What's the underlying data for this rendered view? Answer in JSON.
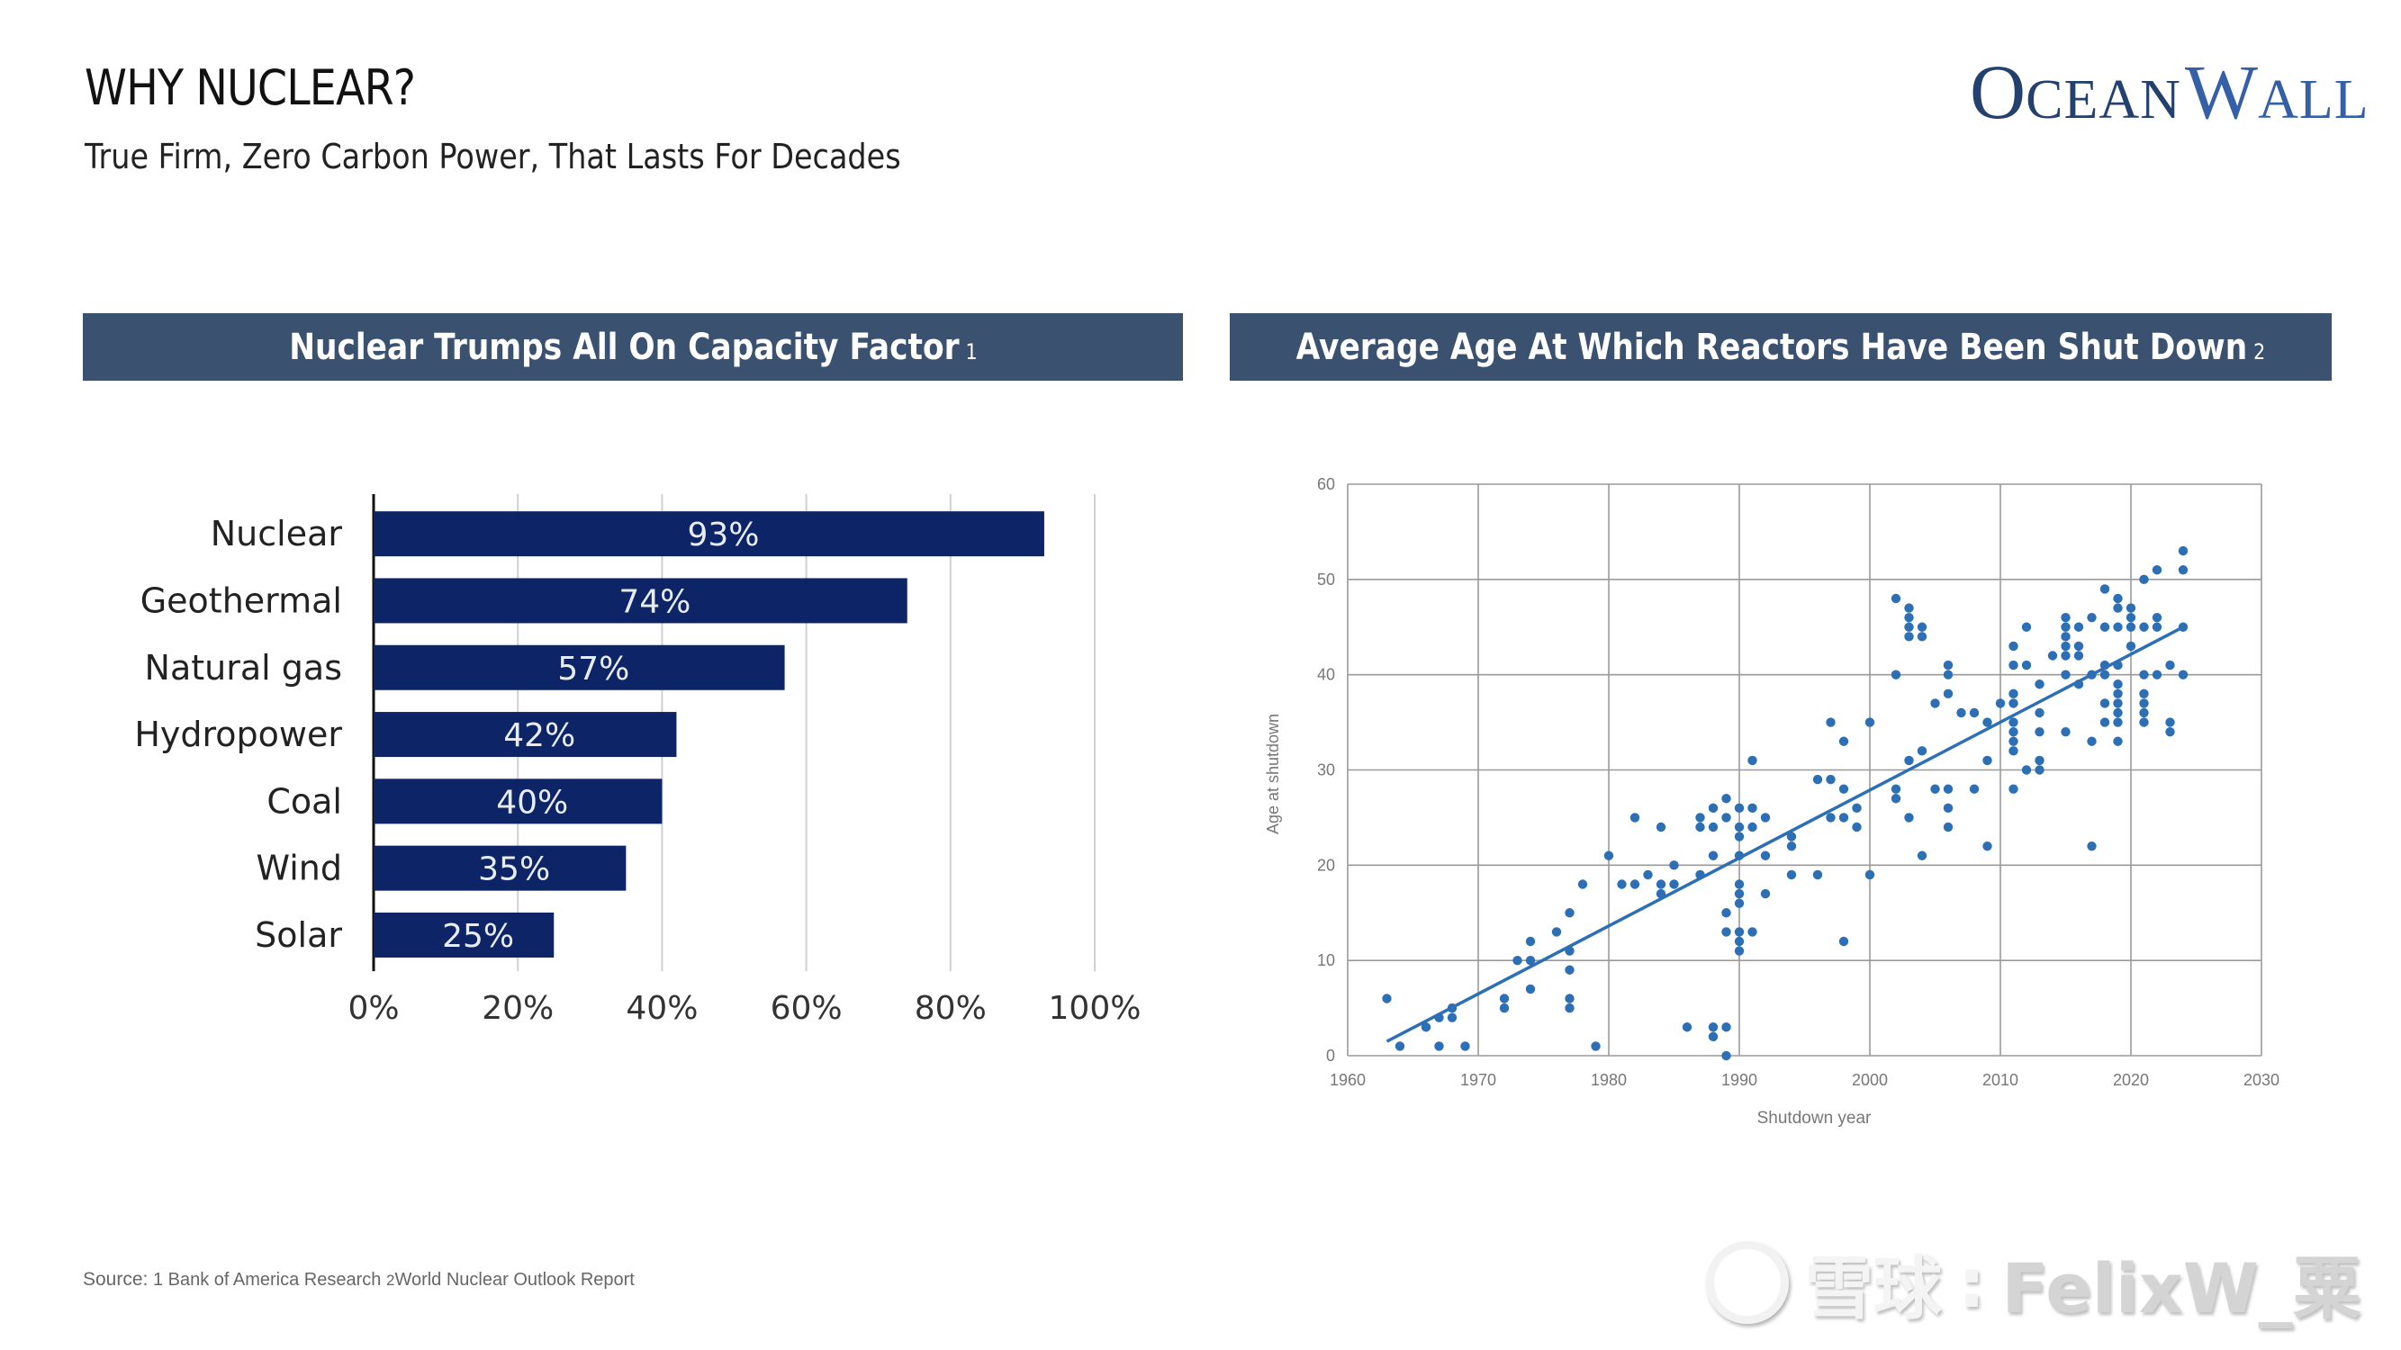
{
  "header": {
    "title": "WHY NUCLEAR?",
    "subtitle": "True Firm, Zero Carbon Power, That Lasts For Decades",
    "logo": {
      "first_initial": "O",
      "first_rest": "CEAN",
      "second_initial": "W",
      "second_rest": "ALL"
    }
  },
  "colors": {
    "banner": "#3a5170",
    "bar": "#0d2466",
    "scatter": "#2c6fb4",
    "logo_dark": "#24406e",
    "logo_light": "#3560a8"
  },
  "panels": {
    "left": {
      "title": "Nuclear Trumps All On Capacity Factor",
      "footnote": "1"
    },
    "right": {
      "title": "Average Age At Which Reactors Have Been Shut Down",
      "footnote": "2"
    }
  },
  "footer": {
    "label": "Source:",
    "n1": "1",
    "s1": "Bank of America Research",
    "n2": "2",
    "s2": "World Nuclear Outlook Report"
  },
  "watermark": {
    "cn": "雪球",
    "sep": ":",
    "user": "FelixW_粟"
  },
  "chart_data": [
    {
      "type": "bar",
      "orientation": "horizontal",
      "title": "Nuclear Trumps All On Capacity Factor",
      "categories": [
        "Nuclear",
        "Geothermal",
        "Natural gas",
        "Hydropower",
        "Coal",
        "Wind",
        "Solar"
      ],
      "values": [
        93,
        74,
        57,
        42,
        40,
        35,
        25
      ],
      "value_labels": [
        "93%",
        "74%",
        "57%",
        "42%",
        "40%",
        "35%",
        "25%"
      ],
      "xlim": [
        0,
        100
      ],
      "xticks": [
        "0%",
        "20%",
        "40%",
        "60%",
        "80%",
        "100%"
      ],
      "xtick_values": [
        0,
        20,
        40,
        60,
        80,
        100
      ],
      "grid": true,
      "xlabel": "",
      "ylabel": ""
    },
    {
      "type": "scatter",
      "title": "Average Age At Which Reactors Have Been Shut Down",
      "xlabel": "Shutdown year",
      "ylabel": "Age at shutdown",
      "xlim": [
        1960,
        2030
      ],
      "ylim": [
        0,
        60
      ],
      "xticks": [
        "1960",
        "1970",
        "1980",
        "1990",
        "2000",
        "2010",
        "2020",
        "2030"
      ],
      "xtick_values": [
        1960,
        1970,
        1980,
        1990,
        2000,
        2010,
        2020,
        2030
      ],
      "yticks": [
        "0",
        "10",
        "20",
        "30",
        "40",
        "50",
        "60"
      ],
      "ytick_values": [
        0,
        10,
        20,
        30,
        40,
        50,
        60
      ],
      "grid": true,
      "trendline": {
        "x": [
          1963,
          2024
        ],
        "y": [
          1.5,
          45
        ]
      },
      "points": [
        [
          1963,
          6
        ],
        [
          1964,
          1
        ],
        [
          1966,
          3
        ],
        [
          1967,
          4
        ],
        [
          1967,
          1
        ],
        [
          1968,
          5
        ],
        [
          1968,
          4
        ],
        [
          1969,
          1
        ],
        [
          1972,
          6
        ],
        [
          1972,
          5
        ],
        [
          1973,
          10
        ],
        [
          1974,
          12
        ],
        [
          1974,
          10
        ],
        [
          1974,
          7
        ],
        [
          1976,
          13
        ],
        [
          1977,
          15
        ],
        [
          1977,
          11
        ],
        [
          1977,
          9
        ],
        [
          1977,
          6
        ],
        [
          1977,
          5
        ],
        [
          1978,
          18
        ],
        [
          1979,
          1
        ],
        [
          1980,
          21
        ],
        [
          1981,
          18
        ],
        [
          1982,
          18
        ],
        [
          1982,
          25
        ],
        [
          1983,
          19
        ],
        [
          1984,
          18
        ],
        [
          1984,
          17
        ],
        [
          1984,
          24
        ],
        [
          1985,
          20
        ],
        [
          1985,
          18
        ],
        [
          1986,
          3
        ],
        [
          1987,
          19
        ],
        [
          1987,
          25
        ],
        [
          1987,
          24
        ],
        [
          1988,
          26
        ],
        [
          1988,
          24
        ],
        [
          1988,
          21
        ],
        [
          1988,
          2
        ],
        [
          1988,
          3
        ],
        [
          1989,
          27
        ],
        [
          1989,
          25
        ],
        [
          1989,
          15
        ],
        [
          1989,
          13
        ],
        [
          1989,
          3
        ],
        [
          1989,
          0
        ],
        [
          1990,
          26
        ],
        [
          1990,
          24
        ],
        [
          1990,
          23
        ],
        [
          1990,
          21
        ],
        [
          1990,
          18
        ],
        [
          1990,
          17
        ],
        [
          1990,
          16
        ],
        [
          1990,
          13
        ],
        [
          1990,
          12
        ],
        [
          1990,
          11
        ],
        [
          1991,
          31
        ],
        [
          1991,
          26
        ],
        [
          1991,
          24
        ],
        [
          1991,
          13
        ],
        [
          1992,
          25
        ],
        [
          1992,
          21
        ],
        [
          1992,
          17
        ],
        [
          1994,
          23
        ],
        [
          1994,
          22
        ],
        [
          1994,
          19
        ],
        [
          1996,
          29
        ],
        [
          1996,
          19
        ],
        [
          1997,
          35
        ],
        [
          1997,
          29
        ],
        [
          1997,
          25
        ],
        [
          1998,
          33
        ],
        [
          1998,
          28
        ],
        [
          1998,
          25
        ],
        [
          1998,
          12
        ],
        [
          1999,
          26
        ],
        [
          1999,
          24
        ],
        [
          2000,
          35
        ],
        [
          2000,
          19
        ],
        [
          2002,
          48
        ],
        [
          2002,
          40
        ],
        [
          2002,
          28
        ],
        [
          2002,
          27
        ],
        [
          2003,
          47
        ],
        [
          2003,
          46
        ],
        [
          2003,
          45
        ],
        [
          2003,
          44
        ],
        [
          2003,
          31
        ],
        [
          2003,
          25
        ],
        [
          2004,
          45
        ],
        [
          2004,
          44
        ],
        [
          2004,
          32
        ],
        [
          2004,
          21
        ],
        [
          2005,
          37
        ],
        [
          2005,
          28
        ],
        [
          2006,
          41
        ],
        [
          2006,
          40
        ],
        [
          2006,
          38
        ],
        [
          2006,
          28
        ],
        [
          2006,
          26
        ],
        [
          2006,
          24
        ],
        [
          2007,
          36
        ],
        [
          2008,
          36
        ],
        [
          2008,
          28
        ],
        [
          2009,
          35
        ],
        [
          2009,
          31
        ],
        [
          2009,
          22
        ],
        [
          2010,
          37
        ],
        [
          2011,
          43
        ],
        [
          2011,
          41
        ],
        [
          2011,
          38
        ],
        [
          2011,
          37
        ],
        [
          2011,
          35
        ],
        [
          2011,
          34
        ],
        [
          2011,
          33
        ],
        [
          2011,
          32
        ],
        [
          2011,
          28
        ],
        [
          2012,
          45
        ],
        [
          2012,
          41
        ],
        [
          2012,
          30
        ],
        [
          2013,
          39
        ],
        [
          2013,
          36
        ],
        [
          2013,
          34
        ],
        [
          2013,
          31
        ],
        [
          2013,
          30
        ],
        [
          2014,
          42
        ],
        [
          2015,
          46
        ],
        [
          2015,
          45
        ],
        [
          2015,
          44
        ],
        [
          2015,
          43
        ],
        [
          2015,
          42
        ],
        [
          2015,
          40
        ],
        [
          2015,
          34
        ],
        [
          2016,
          45
        ],
        [
          2016,
          43
        ],
        [
          2016,
          42
        ],
        [
          2016,
          39
        ],
        [
          2017,
          46
        ],
        [
          2017,
          40
        ],
        [
          2017,
          33
        ],
        [
          2017,
          22
        ],
        [
          2018,
          49
        ],
        [
          2018,
          45
        ],
        [
          2018,
          41
        ],
        [
          2018,
          40
        ],
        [
          2018,
          37
        ],
        [
          2018,
          35
        ],
        [
          2019,
          48
        ],
        [
          2019,
          47
        ],
        [
          2019,
          45
        ],
        [
          2019,
          41
        ],
        [
          2019,
          39
        ],
        [
          2019,
          38
        ],
        [
          2019,
          37
        ],
        [
          2019,
          36
        ],
        [
          2019,
          35
        ],
        [
          2019,
          33
        ],
        [
          2020,
          47
        ],
        [
          2020,
          46
        ],
        [
          2020,
          45
        ],
        [
          2020,
          43
        ],
        [
          2021,
          50
        ],
        [
          2021,
          45
        ],
        [
          2021,
          40
        ],
        [
          2021,
          38
        ],
        [
          2021,
          37
        ],
        [
          2021,
          36
        ],
        [
          2021,
          35
        ],
        [
          2022,
          51
        ],
        [
          2022,
          46
        ],
        [
          2022,
          45
        ],
        [
          2022,
          40
        ],
        [
          2023,
          41
        ],
        [
          2023,
          35
        ],
        [
          2023,
          34
        ],
        [
          2024,
          53
        ],
        [
          2024,
          51
        ],
        [
          2024,
          45
        ],
        [
          2024,
          40
        ]
      ]
    }
  ]
}
